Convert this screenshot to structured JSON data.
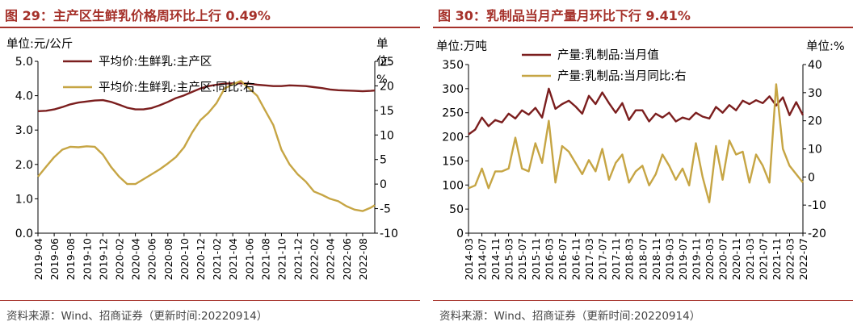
{
  "figures": [
    {
      "title": "图 29：主产区生鲜乳价格周环比上行 0.49%",
      "source": "资料来源：Wind、招商证券（更新时间:20220914）"
    },
    {
      "title": "图 30：乳制品当月产量月环比下行 9.41%",
      "source": "资料来源：Wind、招商证券（更新时间:20220914）"
    }
  ],
  "colors": {
    "accent": "#A5312A",
    "dark_series": "#7B1E1E",
    "gold_series": "#C6A544",
    "right_axis_red": "#C00000"
  },
  "chart_data": [
    {
      "type": "line",
      "left_axis_label": "单位:元/公斤",
      "right_axis_label_chars": [
        "单",
        "位:",
        "%"
      ],
      "ylim_left": [
        0,
        5
      ],
      "left_ticks": [
        "0.0",
        "1.0",
        "2.0",
        "3.0",
        "4.0",
        "5.0"
      ],
      "ylim_right": [
        -10,
        25
      ],
      "right_ticks": [
        "-10",
        "-5",
        "0",
        "5",
        "10",
        "15",
        "20",
        "25"
      ],
      "x_tick_labels": [
        "2019-04",
        "2019-06",
        "2019-08",
        "2019-10",
        "2019-12",
        "2020-02",
        "2020-04",
        "2020-06",
        "2020-08",
        "2020-10",
        "2020-12",
        "2021-02",
        "2021-04",
        "2021-06",
        "2021-08",
        "2021-10",
        "2021-12",
        "2022-02",
        "2022-04",
        "2022-06",
        "2022-08"
      ],
      "x_tick_values": [
        0,
        2,
        4,
        6,
        8,
        10,
        12,
        14,
        16,
        18,
        20,
        22,
        24,
        26,
        28,
        30,
        32,
        34,
        36,
        38,
        40
      ],
      "x_range": [
        0,
        41.5
      ],
      "series": [
        {
          "name": "平均价:生鲜乳:主产区",
          "axis": "left",
          "x": [
            0,
            1,
            2,
            3,
            4,
            5,
            6,
            7,
            8,
            9,
            10,
            11,
            12,
            13,
            14,
            15,
            16,
            17,
            18,
            19,
            20,
            21,
            22,
            23,
            24,
            25,
            26,
            27,
            28,
            29,
            30,
            31,
            32,
            33,
            34,
            35,
            36,
            37,
            38,
            39,
            40,
            41,
            41.5
          ],
          "values": [
            3.55,
            3.56,
            3.6,
            3.67,
            3.75,
            3.8,
            3.83,
            3.86,
            3.87,
            3.82,
            3.74,
            3.65,
            3.6,
            3.6,
            3.64,
            3.72,
            3.82,
            3.93,
            4.01,
            4.11,
            4.21,
            4.28,
            4.32,
            4.35,
            4.36,
            4.36,
            4.35,
            4.32,
            4.3,
            4.28,
            4.28,
            4.3,
            4.29,
            4.28,
            4.25,
            4.22,
            4.18,
            4.16,
            4.15,
            4.14,
            4.13,
            4.14,
            4.15
          ]
        },
        {
          "name": "平均价:生鲜乳:主产区:同比:右",
          "axis": "right",
          "x": [
            0,
            1,
            2,
            3,
            4,
            5,
            6,
            7,
            8,
            9,
            10,
            11,
            12,
            13,
            14,
            15,
            16,
            17,
            18,
            19,
            20,
            21,
            22,
            23,
            24,
            25,
            26,
            27,
            28,
            29,
            30,
            31,
            32,
            33,
            34,
            35,
            36,
            37,
            38,
            39,
            40,
            41,
            41.5
          ],
          "values": [
            1.5,
            3.5,
            5.5,
            7,
            7.6,
            7.5,
            7.7,
            7.6,
            6,
            3.5,
            1.5,
            0,
            0,
            1,
            2,
            3,
            4.2,
            5.5,
            7.5,
            10.5,
            13,
            14.5,
            16.5,
            19.5,
            20.3,
            21,
            19.5,
            18,
            15,
            12,
            7,
            4,
            2,
            0.5,
            -1.5,
            -2.2,
            -3,
            -3.5,
            -4.5,
            -5.2,
            -5.5,
            -4.8,
            -4.3
          ]
        }
      ]
    },
    {
      "type": "line",
      "left_axis_label": "单位:万吨",
      "right_axis_label": "单位:%",
      "ylim_left": [
        0,
        350
      ],
      "left_ticks": [
        "0",
        "50",
        "100",
        "150",
        "200",
        "250",
        "300",
        "350"
      ],
      "ylim_right": [
        -20,
        40
      ],
      "right_ticks": [
        "-20",
        "-10",
        "0",
        "10",
        "20",
        "30",
        "40"
      ],
      "x_tick_labels": [
        "2014-03",
        "2014-07",
        "2014-11",
        "2015-03",
        "2015-07",
        "2015-11",
        "2016-03",
        "2016-07",
        "2016-11",
        "2017-03",
        "2017-07",
        "2017-11",
        "2018-03",
        "2018-07",
        "2018-11",
        "2019-03",
        "2019-07",
        "2019-11",
        "2020-03",
        "2020-07",
        "2020-11",
        "2021-03",
        "2021-07",
        "2021-11",
        "2022-03",
        "2022-07"
      ],
      "x_tick_values": [
        0,
        4,
        8,
        12,
        16,
        20,
        24,
        28,
        32,
        36,
        40,
        44,
        48,
        52,
        56,
        60,
        64,
        68,
        72,
        76,
        80,
        84,
        88,
        92,
        96,
        100
      ],
      "x_range": [
        0,
        100
      ],
      "series": [
        {
          "name": "产量:乳制品:当月值",
          "axis": "left",
          "x": [
            0,
            2,
            4,
            6,
            8,
            10,
            12,
            14,
            16,
            18,
            20,
            22,
            24,
            26,
            28,
            30,
            32,
            34,
            36,
            38,
            40,
            42,
            44,
            46,
            48,
            50,
            52,
            54,
            56,
            58,
            60,
            62,
            64,
            66,
            68,
            70,
            72,
            74,
            76,
            78,
            80,
            82,
            84,
            86,
            88,
            90,
            92,
            94,
            96,
            98,
            100
          ],
          "values": [
            205,
            215,
            240,
            222,
            235,
            230,
            248,
            238,
            255,
            246,
            260,
            240,
            300,
            258,
            268,
            275,
            263,
            248,
            285,
            268,
            292,
            270,
            250,
            270,
            235,
            255,
            255,
            232,
            248,
            240,
            250,
            232,
            240,
            236,
            250,
            242,
            238,
            262,
            250,
            266,
            255,
            275,
            268,
            276,
            270,
            284,
            265,
            282,
            245,
            272,
            245
          ]
        },
        {
          "name": "产量:乳制品:当月同比:右",
          "axis": "right",
          "x": [
            0,
            2,
            4,
            6,
            8,
            10,
            12,
            14,
            16,
            18,
            20,
            22,
            24,
            26,
            28,
            30,
            32,
            34,
            36,
            38,
            40,
            42,
            44,
            46,
            48,
            50,
            52,
            54,
            56,
            58,
            60,
            62,
            64,
            66,
            68,
            70,
            72,
            74,
            76,
            78,
            80,
            82,
            84,
            86,
            88,
            90,
            92,
            94,
            96,
            98,
            100
          ],
          "values": [
            -4,
            -3,
            3,
            -4,
            2,
            2,
            3,
            14,
            3,
            2,
            12,
            5,
            20,
            -2,
            11,
            9,
            5,
            1,
            6,
            2,
            10,
            -1,
            5,
            8,
            -2,
            2,
            4,
            -3,
            1,
            8,
            4,
            -1,
            3,
            -3,
            12,
            0,
            -9,
            11,
            -1,
            13,
            8,
            9,
            -2,
            8,
            4,
            -2,
            33,
            10,
            4,
            1,
            -2
          ]
        }
      ]
    }
  ]
}
